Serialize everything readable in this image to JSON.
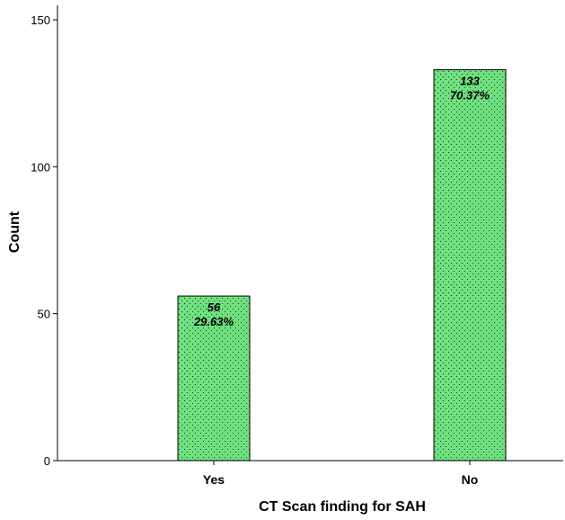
{
  "chart_data": {
    "type": "bar",
    "categories": [
      "Yes",
      "No"
    ],
    "values": [
      56,
      133
    ],
    "percent_labels": [
      "29.63%",
      "70.37%"
    ],
    "count_labels": [
      "56",
      "133"
    ],
    "xlabel": "CT Scan finding for SAH",
    "ylabel": "Count",
    "ylim": [
      0,
      150
    ],
    "yticks": [
      0,
      50,
      100,
      150
    ],
    "grid": false,
    "bar_fill": "#6ee07e",
    "bar_stroke": "#000000",
    "bar_pattern": "dotted"
  }
}
